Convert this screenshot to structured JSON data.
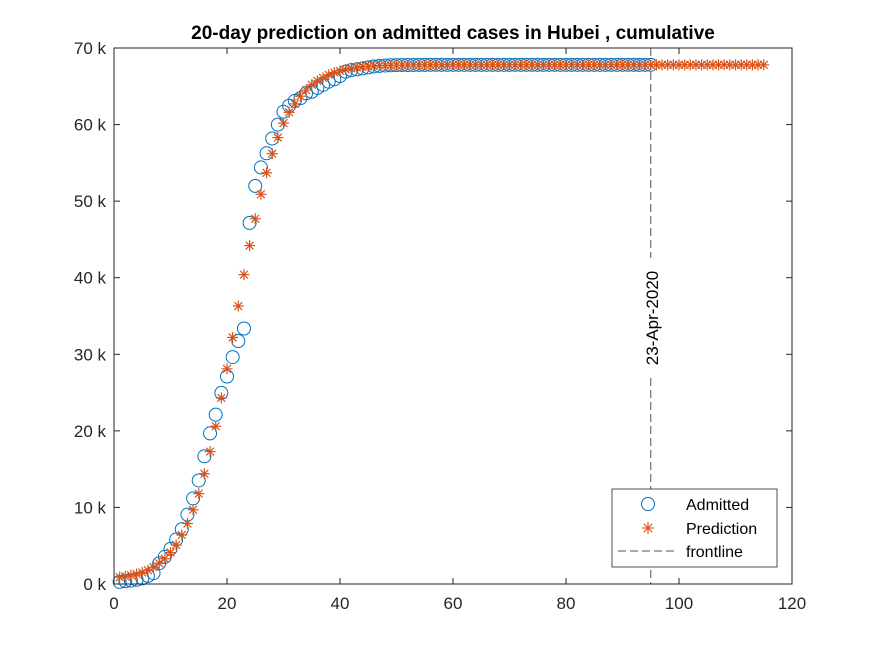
{
  "chart_data": {
    "type": "scatter",
    "title": "20-day prediction on admitted cases in Hubei , cumulative",
    "xlabel": "",
    "ylabel": "",
    "xlim": [
      0,
      120
    ],
    "ylim": [
      0,
      70000
    ],
    "x_ticks": [
      0,
      20,
      40,
      60,
      80,
      100,
      120
    ],
    "x_tick_labels": [
      "0",
      "20",
      "40",
      "60",
      "80",
      "100",
      "120"
    ],
    "y_ticks": [
      0,
      10000,
      20000,
      30000,
      40000,
      50000,
      60000,
      70000
    ],
    "y_tick_labels": [
      "0 k",
      "10 k",
      "20 k",
      "30 k",
      "40 k",
      "50 k",
      "60 k",
      "70 k"
    ],
    "grid": false,
    "legend_position": "bottom-right",
    "colors": {
      "admitted": "#0072BD",
      "prediction": "#D95319",
      "frontline": "#555555"
    },
    "series": [
      {
        "name": "Admitted",
        "marker": "circle",
        "x_start": 1,
        "values": [
          270,
          375,
          444,
          549,
          729,
          1052,
          1423,
          2714,
          3554,
          4586,
          5806,
          7153,
          9074,
          11177,
          13522,
          16678,
          19665,
          22112,
          24953,
          27100,
          29631,
          31728,
          33366,
          47163,
          51986,
          54406,
          56249,
          58182,
          59989,
          61682,
          62457,
          63088,
          63454,
          64084,
          64287,
          64786,
          65187,
          65596,
          65914,
          66337,
          66907,
          67103,
          67217,
          67332,
          67466,
          67592,
          67666,
          67707,
          67743,
          67760,
          67773,
          67781,
          67786,
          67790,
          67794,
          67798,
          67799,
          67800,
          67800,
          67801,
          67801,
          67801,
          67802,
          67802,
          67802,
          67802,
          67802,
          67802,
          67802,
          67802,
          67802,
          67802,
          67802,
          67802,
          67802,
          67802,
          67802,
          67802,
          67802,
          67802,
          67802,
          67802,
          67802,
          67802,
          67802,
          67802,
          67802,
          67802,
          67802,
          67802,
          67802,
          67802,
          67802,
          67802,
          67802
        ]
      },
      {
        "name": "Prediction",
        "marker": "asterisk",
        "x_start": 1,
        "values": [
          900,
          1000,
          1150,
          1300,
          1500,
          1800,
          2200,
          2700,
          3300,
          4100,
          5100,
          6400,
          7900,
          9700,
          11800,
          14400,
          17300,
          20600,
          24300,
          28100,
          32200,
          36300,
          40400,
          44200,
          47700,
          50900,
          53700,
          56200,
          58300,
          60200,
          61600,
          62700,
          63700,
          64500,
          65200,
          65700,
          66100,
          66500,
          66800,
          67000,
          67200,
          67350,
          67450,
          67550,
          67600,
          67650,
          67700,
          67720,
          67740,
          67760,
          67770,
          67780,
          67790,
          67795,
          67800,
          67800,
          67800,
          67800,
          67800,
          67800,
          67800,
          67800,
          67800,
          67800,
          67800,
          67800,
          67800,
          67800,
          67800,
          67800,
          67800,
          67800,
          67800,
          67800,
          67800,
          67800,
          67800,
          67800,
          67800,
          67800,
          67800,
          67800,
          67800,
          67800,
          67800,
          67800,
          67800,
          67800,
          67800,
          67800,
          67800,
          67800,
          67800,
          67800,
          67800,
          67800,
          67800,
          67800,
          67800,
          67800,
          67800,
          67800,
          67800,
          67800,
          67800,
          67800,
          67800,
          67800,
          67800,
          67800,
          67800,
          67800,
          67800,
          67800,
          67800
        ]
      }
    ],
    "frontline": {
      "name": "frontline",
      "x": 95,
      "label": "23-Apr-2020"
    }
  }
}
